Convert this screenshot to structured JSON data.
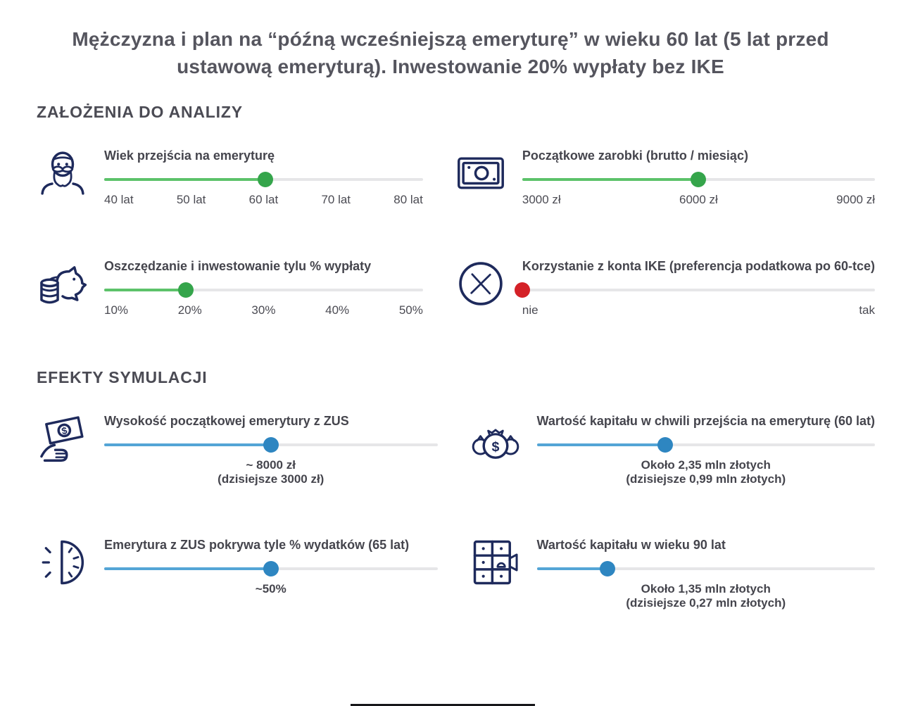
{
  "page_title": {
    "line1": "Mężczyzna i plan na “późną wcześniejszą emeryturę” w wieku 60 lat (5 lat przed",
    "line2": "ustawową emeryturą). Inwestowanie 20% wypłaty bez IKE"
  },
  "assumptions": {
    "heading": "ZAŁOŻENIA DO ANALIZY",
    "sliders": [
      {
        "icon": "old-man-icon",
        "title": "Wiek przejścia na emeryturę",
        "percent": 50.5,
        "color": "green",
        "labels": [
          "40 lat",
          "50 lat",
          "60 lat",
          "70 lat",
          "80 lat"
        ]
      },
      {
        "icon": "banknote-icon",
        "title": "Początkowe zarobki (brutto / miesiąc)",
        "percent": 50,
        "color": "green",
        "labels": [
          "3000 zł",
          "6000 zł",
          "9000 zł"
        ]
      },
      {
        "icon": "piggy-bank-icon",
        "title": "Oszczędzanie i inwestowanie tylu % wypłaty",
        "percent": 25.7,
        "color": "green",
        "labels": [
          "10%",
          "20%",
          "30%",
          "40%",
          "50%"
        ]
      },
      {
        "icon": "x-circle-icon",
        "title": "Korzystanie z konta IKE (preferencja podatkowa po 60-tce)",
        "percent": 0,
        "color": "red",
        "labels": [
          "nie",
          "tak"
        ]
      }
    ]
  },
  "effects": {
    "heading": "EFEKTY SYMULACJI",
    "sliders": [
      {
        "icon": "hand-money-icon",
        "title": "Wysokość początkowej emerytury z ZUS",
        "percent": 50,
        "color": "blue",
        "value_line1": "~ 8000 zł",
        "value_line2": "(dzisiejsze 3000 zł)"
      },
      {
        "icon": "money-bags-icon",
        "title": "Wartość kapitału w chwili przejścia na emeryturę (60 lat)",
        "percent": 38,
        "color": "blue",
        "value_line1": "Około 2,35 mln złotych",
        "value_line2": "(dzisiejsze 0,99 mln złotych)"
      },
      {
        "icon": "half-clock-icon",
        "title": "Emerytura z ZUS pokrywa tyle % wydatków (65 lat)",
        "percent": 50,
        "color": "blue",
        "value_line1": "~50%",
        "value_line2": ""
      },
      {
        "icon": "safe-deposit-icon",
        "title": "Wartość kapitału w wieku 90 lat",
        "percent": 21,
        "color": "blue",
        "value_line1": "Około 1,35 mln złotych",
        "value_line2": "(dzisiejsze 0,27 mln złotych)"
      }
    ]
  },
  "colors": {
    "icon_navy": "#1e2a5c",
    "green_handle": "#35a54b",
    "green_fill": "#5cc26a",
    "blue_handle": "#2e86c1",
    "blue_fill": "#54a5d6",
    "red_handle": "#d42127",
    "track_gray": "#e6e6e8",
    "text_dark": "#45454d"
  }
}
